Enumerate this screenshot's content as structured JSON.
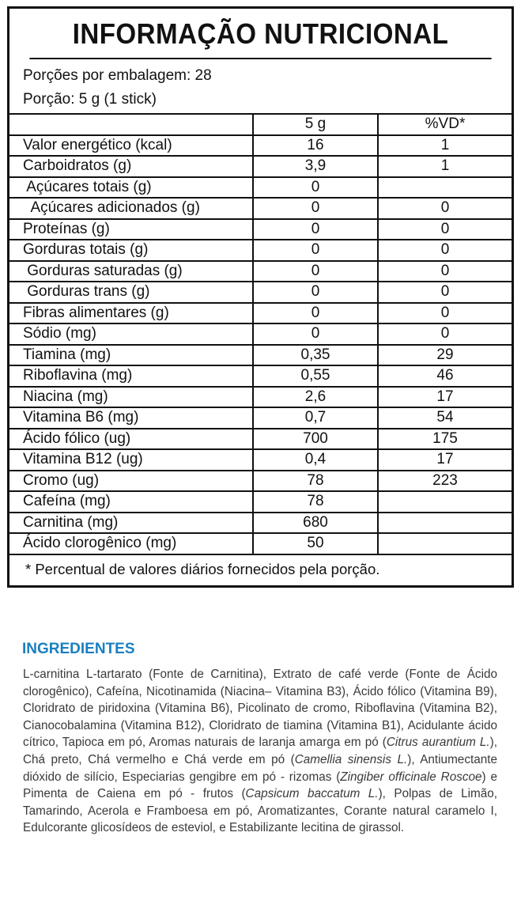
{
  "header": {
    "title": "INFORMAÇÃO NUTRICIONAL"
  },
  "portions": [
    "Porções por embalagem: 28",
    "Porção: 5 g (1 stick)"
  ],
  "table": {
    "columns": [
      null,
      "5 g",
      "%VD*"
    ],
    "rows": [
      [
        "Valor energético (kcal)",
        "16",
        "1"
      ],
      [
        "Carboidratos (g)",
        "3,9",
        "1"
      ],
      [
        " Açúcares totais (g)",
        "0",
        null
      ],
      [
        "  Açúcares adicionados (g)",
        "0",
        "0"
      ],
      [
        "Proteínas (g)",
        "0",
        "0"
      ],
      [
        "Gorduras totais (g)",
        "0",
        "0"
      ],
      [
        " Gorduras saturadas (g)",
        "0",
        "0"
      ],
      [
        " Gorduras trans (g)",
        "0",
        "0"
      ],
      [
        "Fibras alimentares (g)",
        "0",
        "0"
      ],
      [
        "Sódio (mg)",
        "0",
        "0"
      ],
      [
        "Tiamina (mg)",
        "0,35",
        "29"
      ],
      [
        "Riboflavina (mg)",
        "0,55",
        "46"
      ],
      [
        "Niacina (mg)",
        "2,6",
        "17"
      ],
      [
        "Vitamina B6 (mg)",
        "0,7",
        "54"
      ],
      [
        "Ácido fólico (ug)",
        "700",
        "175"
      ],
      [
        "Vitamina B12 (ug)",
        "0,4",
        "17"
      ],
      [
        "Cromo (ug)",
        "78",
        "223"
      ],
      [
        "Cafeína (mg)",
        "78",
        null
      ],
      [
        "Carnitina (mg)",
        "680",
        null
      ],
      [
        "Ácido clorogênico (mg)",
        "50",
        null
      ]
    ],
    "footnote": "* Percentual de valores diários fornecidos pela porção."
  },
  "ingredients": {
    "title": "INGREDIENTES",
    "segments": [
      {
        "text": "L-carnitina L-tartarato (Fonte de Carnitina), Extrato de café verde (Fonte de Ácido clorogênico), Cafeína, Nicotinamida (Niacina– Vitamina B3), Ácido fólico (Vitamina B9), Cloridrato de piridoxina (Vitamina B6), Picolinato de cromo, Riboflavina (Vitamina B2), Cianocobalamina (Vitamina B12), Cloridrato de tiamina (Vitamina B1), Acidulante ácido cítrico, Tapioca em pó, Aromas naturais de laranja amarga em pó (",
        "italic": false
      },
      {
        "text": "Citrus aurantium L.",
        "italic": true
      },
      {
        "text": "), Chá preto, Chá vermelho e Chá verde em pó (",
        "italic": false
      },
      {
        "text": "Camellia sinensis L.",
        "italic": true
      },
      {
        "text": "), Antiumectante dióxido de silício, Especiarias gengibre em pó - rizomas (",
        "italic": false
      },
      {
        "text": "Zingiber officinale Roscoe",
        "italic": true
      },
      {
        "text": ") e Pimenta de Caiena em pó - frutos (",
        "italic": false
      },
      {
        "text": "Capsicum baccatum L.",
        "italic": true
      },
      {
        "text": "), Polpas de Limão, Tamarindo, Acerola e Framboesa em pó, Aromatizantes, Corante natural caramelo I,  Edulcorante glicosídeos de esteviol, e Estabilizante lecitina de girassol.",
        "italic": false
      }
    ]
  }
}
